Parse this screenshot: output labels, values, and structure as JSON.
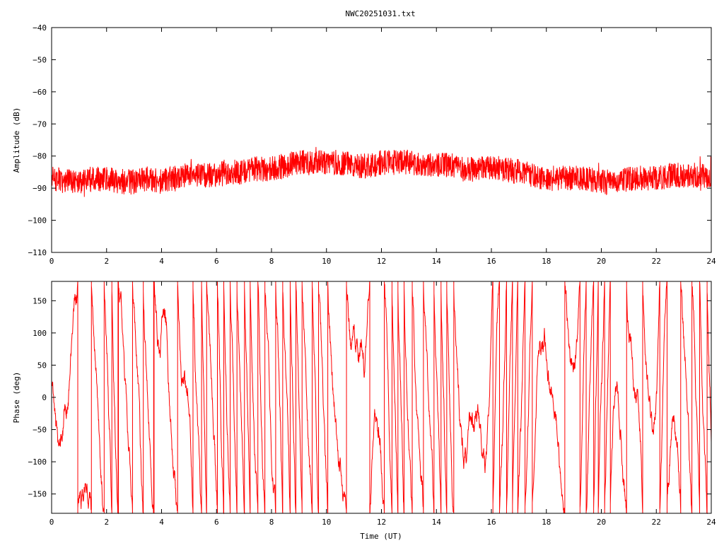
{
  "figure": {
    "title": "NWC20251031.txt"
  },
  "colors": {
    "series": "#ff0000",
    "axes": "#000000",
    "background": "#ffffff"
  },
  "chart_data": [
    {
      "type": "line",
      "name": "amplitude",
      "title": "NWC20251031.txt",
      "xlabel": "",
      "ylabel": "Amplitude (dB)",
      "xlim": [
        0,
        24
      ],
      "ylim": [
        -110,
        -40
      ],
      "xticks": [
        0,
        2,
        4,
        6,
        8,
        10,
        12,
        14,
        16,
        18,
        20,
        22,
        24
      ],
      "yticks": [
        -40,
        -50,
        -60,
        -70,
        -80,
        -90,
        -100,
        -110
      ],
      "grid": false,
      "noise_band_db": 4,
      "series": [
        {
          "x": [
            0,
            0.5,
            1,
            1.5,
            2,
            2.5,
            3,
            3.5,
            4,
            4.5,
            5,
            5.5,
            6,
            6.5,
            7,
            7.5,
            8,
            8.5,
            9,
            9.5,
            10,
            10.5,
            11,
            11.5,
            12,
            12.5,
            13,
            13.5,
            14,
            14.5,
            15,
            15.5,
            16,
            16.5,
            17,
            17.5,
            18,
            18.5,
            19,
            19.5,
            20,
            20.5,
            21,
            21.5,
            22,
            22.5,
            23,
            23.5,
            24
          ],
          "y": [
            -87,
            -88,
            -88,
            -87,
            -87,
            -88,
            -88,
            -87,
            -88,
            -87,
            -86,
            -86,
            -86,
            -85,
            -85,
            -84,
            -84,
            -83,
            -82,
            -82,
            -82,
            -82,
            -83,
            -83,
            -82,
            -82,
            -82,
            -83,
            -83,
            -83,
            -84,
            -84,
            -84,
            -84,
            -85,
            -86,
            -87,
            -87,
            -87,
            -87,
            -88,
            -88,
            -87,
            -87,
            -87,
            -86,
            -86,
            -86,
            -86
          ]
        }
      ]
    },
    {
      "type": "line",
      "name": "phase",
      "title": "",
      "xlabel": "Time (UT)",
      "ylabel": "Phase (deg)",
      "xlim": [
        0,
        24
      ],
      "ylim": [
        -180,
        180
      ],
      "xticks": [
        0,
        2,
        4,
        6,
        8,
        10,
        12,
        14,
        16,
        18,
        20,
        22,
        24
      ],
      "yticks": [
        150,
        100,
        50,
        0,
        -50,
        -100,
        -150
      ],
      "grid": false,
      "wraps_at_degrees": 180
    }
  ]
}
